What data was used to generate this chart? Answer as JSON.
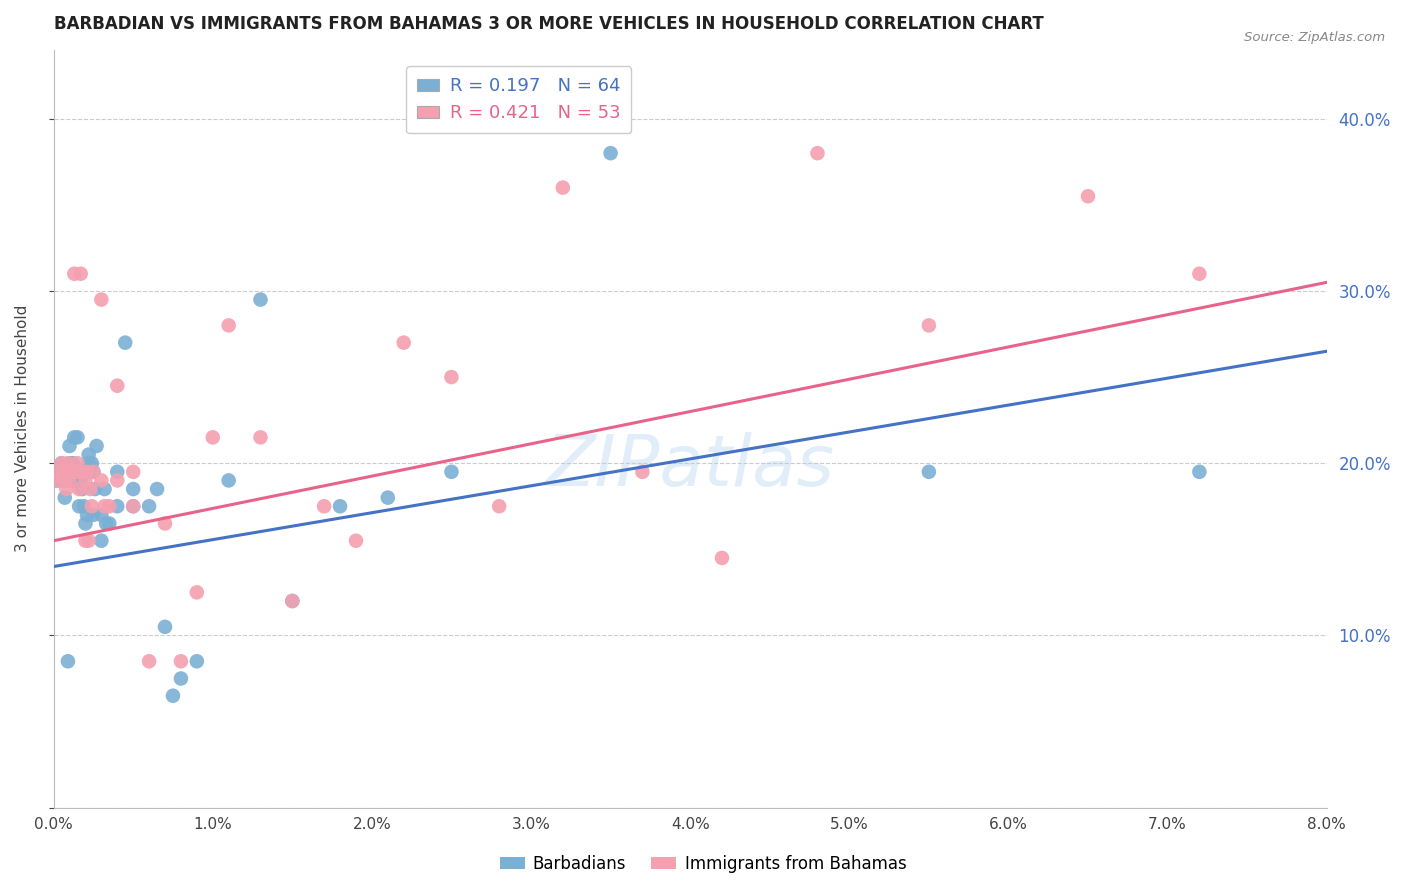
{
  "title": "BARBADIAN VS IMMIGRANTS FROM BAHAMAS 3 OR MORE VEHICLES IN HOUSEHOLD CORRELATION CHART",
  "source": "Source: ZipAtlas.com",
  "ylabel": "3 or more Vehicles in Household",
  "xlim": [
    0.0,
    0.08
  ],
  "ylim": [
    0.0,
    0.44
  ],
  "x_ticks": [
    0.0,
    0.01,
    0.02,
    0.03,
    0.04,
    0.05,
    0.06,
    0.07,
    0.08
  ],
  "y_ticks_right": [
    0.1,
    0.2,
    0.3,
    0.4
  ],
  "blue_color": "#7BAFD4",
  "pink_color": "#F4A0B0",
  "blue_line_color": "#4472C4",
  "pink_line_color": "#E8638A",
  "R_blue": 0.197,
  "N_blue": 64,
  "R_pink": 0.421,
  "N_pink": 53,
  "legend_label_blue": "Barbadians",
  "legend_label_pink": "Immigrants from Bahamas",
  "background_color": "#FFFFFF",
  "grid_color": "#CCCCCC",
  "blue_scatter_x": [
    0.0002,
    0.0003,
    0.0004,
    0.0005,
    0.0005,
    0.0006,
    0.0007,
    0.0007,
    0.0008,
    0.0008,
    0.0009,
    0.001,
    0.001,
    0.001,
    0.0012,
    0.0012,
    0.0013,
    0.0013,
    0.0014,
    0.0014,
    0.0015,
    0.0015,
    0.0016,
    0.0016,
    0.0017,
    0.0018,
    0.0018,
    0.0019,
    0.002,
    0.002,
    0.0021,
    0.0022,
    0.0022,
    0.0023,
    0.0024,
    0.0025,
    0.0025,
    0.0026,
    0.0027,
    0.003,
    0.003,
    0.0032,
    0.0033,
    0.0035,
    0.004,
    0.004,
    0.0045,
    0.005,
    0.005,
    0.006,
    0.0065,
    0.007,
    0.0075,
    0.008,
    0.009,
    0.011,
    0.013,
    0.015,
    0.018,
    0.021,
    0.025,
    0.035,
    0.055,
    0.072
  ],
  "blue_scatter_y": [
    0.19,
    0.195,
    0.19,
    0.195,
    0.2,
    0.195,
    0.18,
    0.19,
    0.19,
    0.195,
    0.085,
    0.195,
    0.2,
    0.21,
    0.19,
    0.2,
    0.19,
    0.215,
    0.19,
    0.195,
    0.19,
    0.215,
    0.175,
    0.195,
    0.19,
    0.185,
    0.195,
    0.175,
    0.165,
    0.195,
    0.17,
    0.2,
    0.205,
    0.195,
    0.2,
    0.17,
    0.195,
    0.185,
    0.21,
    0.17,
    0.155,
    0.185,
    0.165,
    0.165,
    0.175,
    0.195,
    0.27,
    0.175,
    0.185,
    0.175,
    0.185,
    0.105,
    0.065,
    0.075,
    0.085,
    0.19,
    0.295,
    0.12,
    0.175,
    0.18,
    0.195,
    0.38,
    0.195,
    0.195
  ],
  "pink_scatter_x": [
    0.0002,
    0.0003,
    0.0005,
    0.0006,
    0.0007,
    0.0008,
    0.0009,
    0.001,
    0.001,
    0.0011,
    0.0012,
    0.0013,
    0.0014,
    0.0015,
    0.0016,
    0.0016,
    0.0017,
    0.0018,
    0.002,
    0.002,
    0.0021,
    0.0022,
    0.0023,
    0.0024,
    0.0025,
    0.003,
    0.003,
    0.0032,
    0.0035,
    0.004,
    0.004,
    0.005,
    0.005,
    0.006,
    0.007,
    0.008,
    0.009,
    0.01,
    0.011,
    0.013,
    0.015,
    0.017,
    0.019,
    0.022,
    0.025,
    0.028,
    0.032,
    0.037,
    0.042,
    0.048,
    0.055,
    0.065,
    0.072
  ],
  "pink_scatter_y": [
    0.19,
    0.195,
    0.2,
    0.195,
    0.19,
    0.185,
    0.2,
    0.19,
    0.195,
    0.195,
    0.195,
    0.31,
    0.195,
    0.2,
    0.185,
    0.195,
    0.31,
    0.195,
    0.155,
    0.19,
    0.195,
    0.155,
    0.185,
    0.175,
    0.195,
    0.19,
    0.295,
    0.175,
    0.175,
    0.19,
    0.245,
    0.195,
    0.175,
    0.085,
    0.165,
    0.085,
    0.125,
    0.215,
    0.28,
    0.215,
    0.12,
    0.175,
    0.155,
    0.27,
    0.25,
    0.175,
    0.36,
    0.195,
    0.145,
    0.38,
    0.28,
    0.355,
    0.31
  ],
  "blue_line_x0": 0.0,
  "blue_line_y0": 0.14,
  "blue_line_x1": 0.08,
  "blue_line_y1": 0.265,
  "pink_line_x0": 0.0,
  "pink_line_y0": 0.155,
  "pink_line_x1": 0.08,
  "pink_line_y1": 0.305
}
